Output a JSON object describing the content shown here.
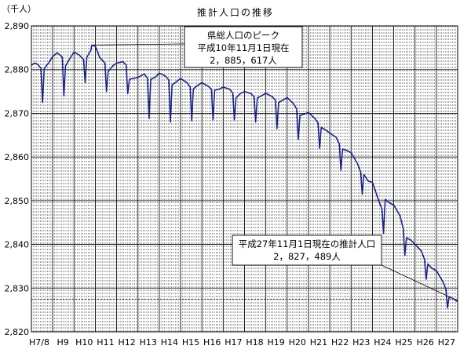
{
  "chart_data": {
    "type": "line",
    "title": "推計人口の推移",
    "ylabel": "（千人）",
    "xlabel": "",
    "ylim": [
      2820,
      2890
    ],
    "yticks": [
      2820,
      2830,
      2840,
      2850,
      2860,
      2870,
      2880,
      2890
    ],
    "ytick_labels": [
      "2,820",
      "2,830",
      "2,840",
      "2,850",
      "2,860",
      "2,870",
      "2,880",
      "2,890"
    ],
    "x_start_year": 8,
    "x_end_year": 28,
    "x_tick_labels": [
      "H7/8",
      "H9",
      "H10",
      "H11",
      "H12",
      "H13",
      "H14",
      "H15",
      "H16",
      "H17",
      "H18",
      "H19",
      "H20",
      "H21",
      "H22",
      "H23",
      "H24",
      "H25",
      "H26",
      "H27"
    ],
    "grid": "vertical-monthly-dashed",
    "series": [
      {
        "name": "",
        "color": "#1a237e",
        "points": [
          [
            8.0,
            2881.0
          ],
          [
            8.15,
            2881.5
          ],
          [
            8.3,
            2881.2
          ],
          [
            8.45,
            2880.3
          ],
          [
            8.52,
            2872.5
          ],
          [
            8.6,
            2880.2
          ],
          [
            8.8,
            2881.5
          ],
          [
            9.0,
            2883.0
          ],
          [
            9.2,
            2883.8
          ],
          [
            9.3,
            2883.5
          ],
          [
            9.45,
            2882.8
          ],
          [
            9.52,
            2874.0
          ],
          [
            9.6,
            2880.8
          ],
          [
            9.8,
            2882.5
          ],
          [
            10.0,
            2884.0
          ],
          [
            10.25,
            2883.3
          ],
          [
            10.45,
            2882.3
          ],
          [
            10.52,
            2877.0
          ],
          [
            10.6,
            2882.8
          ],
          [
            10.8,
            2884.5
          ],
          [
            10.83,
            2885.6
          ],
          [
            11.0,
            2885.3
          ],
          [
            11.2,
            2882.8
          ],
          [
            11.45,
            2881.5
          ],
          [
            11.52,
            2875.0
          ],
          [
            11.6,
            2879.5
          ],
          [
            11.8,
            2880.8
          ],
          [
            12.0,
            2881.5
          ],
          [
            12.3,
            2881.8
          ],
          [
            12.45,
            2881.0
          ],
          [
            12.52,
            2874.5
          ],
          [
            12.6,
            2877.8
          ],
          [
            12.8,
            2878.0
          ],
          [
            13.0,
            2878.2
          ],
          [
            13.3,
            2879.0
          ],
          [
            13.45,
            2878.0
          ],
          [
            13.52,
            2868.8
          ],
          [
            13.6,
            2877.8
          ],
          [
            13.8,
            2878.2
          ],
          [
            14.0,
            2879.2
          ],
          [
            14.3,
            2878.5
          ],
          [
            14.45,
            2877.6
          ],
          [
            14.52,
            2868.0
          ],
          [
            14.6,
            2876.5
          ],
          [
            14.8,
            2877.2
          ],
          [
            15.0,
            2878.0
          ],
          [
            15.3,
            2877.0
          ],
          [
            15.45,
            2876.0
          ],
          [
            15.52,
            2868.3
          ],
          [
            15.6,
            2875.6
          ],
          [
            15.8,
            2876.4
          ],
          [
            16.0,
            2877.0
          ],
          [
            16.3,
            2876.2
          ],
          [
            16.45,
            2875.5
          ],
          [
            16.52,
            2868.5
          ],
          [
            16.6,
            2875.3
          ],
          [
            16.8,
            2875.5
          ],
          [
            17.0,
            2876.0
          ],
          [
            17.3,
            2875.5
          ],
          [
            17.45,
            2874.6
          ],
          [
            17.52,
            2868.5
          ],
          [
            17.6,
            2873.5
          ],
          [
            17.8,
            2874.5
          ],
          [
            18.0,
            2875.0
          ],
          [
            18.3,
            2874.5
          ],
          [
            18.45,
            2873.8
          ],
          [
            18.52,
            2868.0
          ],
          [
            18.6,
            2873.5
          ],
          [
            18.8,
            2874.0
          ],
          [
            19.0,
            2874.6
          ],
          [
            19.3,
            2873.8
          ],
          [
            19.45,
            2873.0
          ],
          [
            19.52,
            2866.5
          ],
          [
            19.6,
            2872.5
          ],
          [
            19.8,
            2873.0
          ],
          [
            20.0,
            2873.6
          ],
          [
            20.3,
            2872.2
          ],
          [
            20.45,
            2871.0
          ],
          [
            20.52,
            2864.0
          ],
          [
            20.6,
            2869.5
          ],
          [
            20.8,
            2869.8
          ],
          [
            21.0,
            2870.2
          ],
          [
            21.3,
            2868.8
          ],
          [
            21.45,
            2867.8
          ],
          [
            21.52,
            2862.0
          ],
          [
            21.6,
            2866.8
          ],
          [
            21.8,
            2866.2
          ],
          [
            22.0,
            2865.5
          ],
          [
            22.3,
            2864.5
          ],
          [
            22.45,
            2863.0
          ],
          [
            22.52,
            2857.0
          ],
          [
            22.6,
            2861.8
          ],
          [
            22.8,
            2861.5
          ],
          [
            23.0,
            2861.0
          ],
          [
            23.3,
            2858.5
          ],
          [
            23.45,
            2856.5
          ],
          [
            23.52,
            2851.5
          ],
          [
            23.6,
            2856.0
          ],
          [
            23.8,
            2854.5
          ],
          [
            24.0,
            2854.2
          ],
          [
            24.3,
            2850.0
          ],
          [
            24.45,
            2848.0
          ],
          [
            24.52,
            2842.5
          ],
          [
            24.6,
            2850.3
          ],
          [
            24.8,
            2849.5
          ],
          [
            25.0,
            2849.0
          ],
          [
            25.3,
            2846.5
          ],
          [
            25.45,
            2843.5
          ],
          [
            25.52,
            2837.5
          ],
          [
            25.6,
            2841.5
          ],
          [
            25.8,
            2841.0
          ],
          [
            26.0,
            2840.0
          ],
          [
            26.3,
            2838.5
          ],
          [
            26.45,
            2836.5
          ],
          [
            26.52,
            2832.0
          ],
          [
            26.6,
            2835.5
          ],
          [
            26.8,
            2834.5
          ],
          [
            27.0,
            2834.0
          ],
          [
            27.3,
            2831.5
          ],
          [
            27.45,
            2829.8
          ],
          [
            27.52,
            2825.5
          ],
          [
            27.6,
            2828.0
          ],
          [
            27.83,
            2827.5
          ],
          [
            27.95,
            2827.0
          ],
          [
            28.0,
            2827.3
          ]
        ]
      }
    ],
    "reference_line": {
      "y": 2827.489,
      "style": "dashed"
    },
    "annotations": [
      {
        "lines": [
          "県総人口のピーク",
          "平成10年11月1日現在",
          "2，885，617人"
        ],
        "x": 10.83,
        "y": 2885.617
      },
      {
        "lines": [
          "平成27年11月1日現在の推計人口",
          "2，827，489人"
        ],
        "x": 27.83,
        "y": 2827.489
      }
    ]
  }
}
